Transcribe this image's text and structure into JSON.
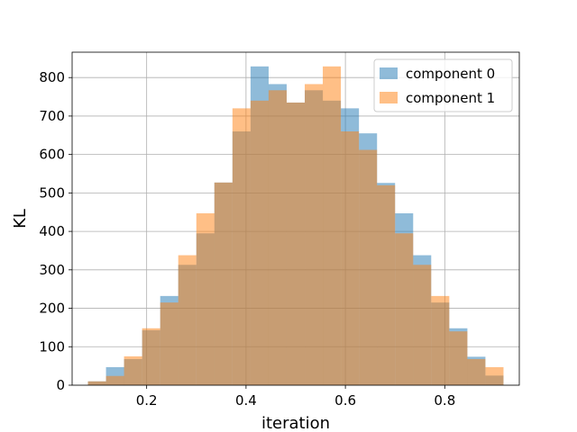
{
  "chart_data": {
    "type": "bar",
    "subtype": "overlaid-histogram",
    "title": "",
    "xlabel": "iteration",
    "ylabel": "KL",
    "xlim": [
      0.05,
      0.95
    ],
    "ylim": [
      0,
      866
    ],
    "grid": true,
    "legend_position": "top-right",
    "bin_width": 0.0364,
    "x": [
      0.1,
      0.1364,
      0.1727,
      0.2091,
      0.2455,
      0.2818,
      0.3182,
      0.3545,
      0.3909,
      0.4273,
      0.4636,
      0.5,
      0.5364,
      0.5727,
      0.6091,
      0.6455,
      0.6818,
      0.7182,
      0.7545,
      0.7909,
      0.8273,
      0.8636,
      0.9
    ],
    "x_ticks": [
      "0.2",
      "0.4",
      "0.6",
      "0.8"
    ],
    "x_tick_values": [
      0.2,
      0.4,
      0.6,
      0.8
    ],
    "y_ticks": [
      "0",
      "100",
      "200",
      "300",
      "400",
      "500",
      "600",
      "700",
      "800"
    ],
    "y_tick_values": [
      0,
      100,
      200,
      300,
      400,
      500,
      600,
      700,
      800
    ],
    "series": [
      {
        "name": "component 0",
        "color": "#1f77b4",
        "opacity": 0.5,
        "values": [
          10,
          47,
          68,
          143,
          232,
          313,
          395,
          527,
          660,
          829,
          783,
          735,
          767,
          740,
          720,
          655,
          526,
          447,
          338,
          215,
          148,
          74,
          25
        ]
      },
      {
        "name": "component 1",
        "color": "#ff7f0e",
        "opacity": 0.5,
        "values": [
          10,
          24,
          75,
          148,
          215,
          338,
          447,
          527,
          720,
          740,
          767,
          735,
          783,
          829,
          660,
          612,
          520,
          395,
          313,
          232,
          140,
          68,
          47
        ]
      }
    ]
  }
}
